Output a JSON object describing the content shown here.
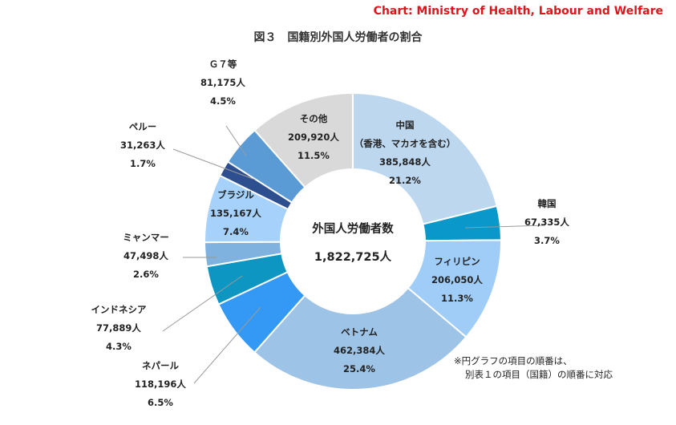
{
  "source": "Chart: Ministry of Health, Labour and Welfare",
  "chart_data": {
    "type": "pie",
    "variant": "donut",
    "title": "図３　国籍別外国人労働者の割合",
    "center_label": "外国人労働者数",
    "center_value": "1,822,725人",
    "total": 1822725,
    "slices": [
      {
        "name": "中国",
        "name2": "（香港、マカオを含む）",
        "value": 385848,
        "value_label": "385,848人",
        "percent": 21.2,
        "percent_label": "21.2%",
        "color": "#bdd7ee"
      },
      {
        "name": "韓国",
        "value": 67335,
        "value_label": "67,335人",
        "percent": 3.7,
        "percent_label": "3.7%",
        "color": "#0a97c9"
      },
      {
        "name": "フィリピン",
        "value": 206050,
        "value_label": "206,050人",
        "percent": 11.3,
        "percent_label": "11.3%",
        "color": "#9fcdf7"
      },
      {
        "name": "ベトナム",
        "value": 462384,
        "value_label": "462,384人",
        "percent": 25.4,
        "percent_label": "25.4%",
        "color": "#9dc3e6"
      },
      {
        "name": "ネパール",
        "value": 118196,
        "value_label": "118,196人",
        "percent": 6.5,
        "percent_label": "6.5%",
        "color": "#3399f5"
      },
      {
        "name": "インドネシア",
        "value": 77889,
        "value_label": "77,889人",
        "percent": 4.3,
        "percent_label": "4.3%",
        "color": "#0d96c2"
      },
      {
        "name": "ミャンマー",
        "value": 47498,
        "value_label": "47,498人",
        "percent": 2.6,
        "percent_label": "2.6%",
        "color": "#7fb2de"
      },
      {
        "name": "ブラジル",
        "value": 135167,
        "value_label": "135,167人",
        "percent": 7.4,
        "percent_label": "7.4%",
        "color": "#a6d1fb"
      },
      {
        "name": "ペルー",
        "value": 31263,
        "value_label": "31,263人",
        "percent": 1.7,
        "percent_label": "1.7%",
        "color": "#2e4f8f"
      },
      {
        "name": "Ｇ７等",
        "value": 81175,
        "value_label": "81,175人",
        "percent": 4.5,
        "percent_label": "4.5%",
        "color": "#5b9bd5"
      },
      {
        "name": "その他",
        "value": 209920,
        "value_label": "209,920人",
        "percent": 11.5,
        "percent_label": "11.5%",
        "color": "#d9d9d9"
      }
    ]
  },
  "note": {
    "line1": "※円グラフの項目の順番は、",
    "line2": "別表１の項目（国籍）の順番に対応"
  }
}
